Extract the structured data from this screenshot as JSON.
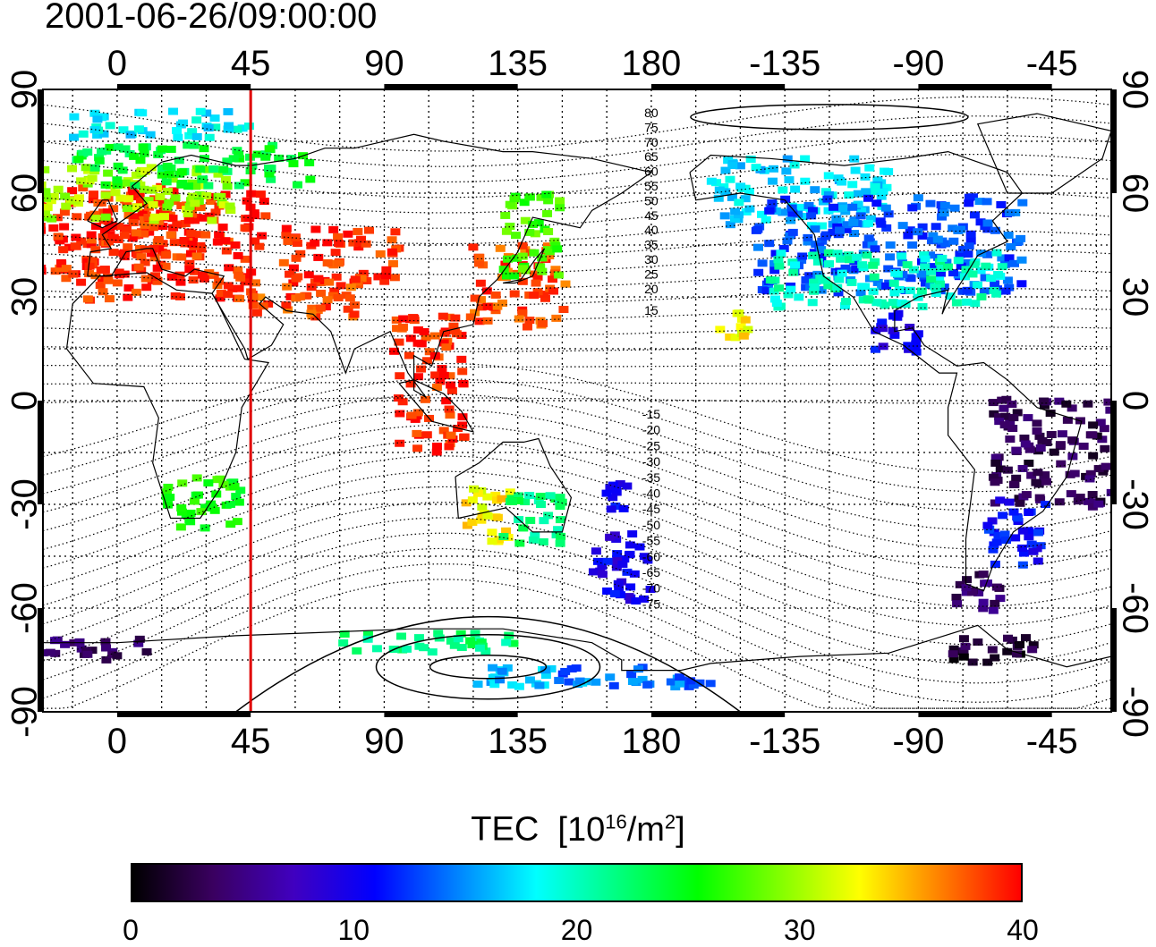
{
  "timestamp": "2001-06-26/09:00:00",
  "colorbar": {
    "title": "TEC",
    "unit_base": "[10",
    "unit_exp": "16",
    "unit_mid": "/m",
    "unit_exp2": "2",
    "unit_end": "]",
    "ticks": [
      "0",
      "10",
      "20",
      "30",
      "40"
    ],
    "min": 0,
    "max": 40,
    "colors": [
      "#000000",
      "#3a0060",
      "#4000c0",
      "#0000ff",
      "#0080ff",
      "#00ffff",
      "#00ff80",
      "#00ff00",
      "#80ff00",
      "#ffff00",
      "#ff8000",
      "#ff0000"
    ]
  },
  "axes": {
    "lon_ticks": [
      "0",
      "45",
      "90",
      "135",
      "180",
      "-135",
      "-90",
      "-45"
    ],
    "lon_values": [
      0,
      45,
      90,
      135,
      180,
      225,
      270,
      315
    ],
    "lon_range": [
      -25,
      335
    ],
    "lat_ticks": [
      "90",
      "60",
      "30",
      "0",
      "-30",
      "-60",
      "-90"
    ],
    "lat_values": [
      90,
      60,
      30,
      0,
      -30,
      -60,
      -90
    ]
  },
  "meridian_line": {
    "lon": 45,
    "color": "#e00000"
  },
  "magnetic_contour_labels": {
    "north": [
      "80",
      "75",
      "70",
      "65",
      "60",
      "55",
      "50",
      "45",
      "40",
      "35",
      "30",
      "25",
      "20",
      "15"
    ],
    "south": [
      "-15",
      "-20",
      "-25",
      "-30",
      "-35",
      "-40",
      "-45",
      "-50",
      "-55",
      "-60",
      "-65",
      "-70",
      "-75"
    ]
  },
  "tec_regions": [
    {
      "lon": -3,
      "lat": 48,
      "w": 30,
      "h": 14,
      "tec": 39
    },
    {
      "lon": 20,
      "lat": 45,
      "w": 30,
      "h": 16,
      "tec": 39
    },
    {
      "lon": 5,
      "lat": 60,
      "w": 35,
      "h": 8,
      "tec": 30
    },
    {
      "lon": 25,
      "lat": 68,
      "w": 40,
      "h": 6,
      "tec": 24
    },
    {
      "lon": 15,
      "lat": 80,
      "w": 30,
      "h": 4,
      "tec": 18
    },
    {
      "lon": 75,
      "lat": 42,
      "w": 20,
      "h": 8,
      "tec": 39
    },
    {
      "lon": 65,
      "lat": 30,
      "w": 20,
      "h": 6,
      "tec": 38
    },
    {
      "lon": 135,
      "lat": 33,
      "w": 16,
      "h": 12,
      "tec": 38
    },
    {
      "lon": 140,
      "lat": 48,
      "w": 10,
      "h": 12,
      "tec": 27
    },
    {
      "lon": 105,
      "lat": 5,
      "w": 12,
      "h": 20,
      "tec": 39
    },
    {
      "lon": 28,
      "lat": -30,
      "w": 14,
      "h": 8,
      "tec": 26
    },
    {
      "lon": 125,
      "lat": -33,
      "w": 8,
      "h": 8,
      "tec": 33
    },
    {
      "lon": 140,
      "lat": -35,
      "w": 10,
      "h": 8,
      "tec": 22
    },
    {
      "lon": 170,
      "lat": -48,
      "w": 10,
      "h": 10,
      "tec": 10
    },
    {
      "lon": 168,
      "lat": -28,
      "w": 5,
      "h": 4,
      "tec": 10
    },
    {
      "lon": 105,
      "lat": -70,
      "w": 30,
      "h": 3,
      "tec": 22
    },
    {
      "lon": 175,
      "lat": -80,
      "w": 25,
      "h": 3,
      "tec": 14
    },
    {
      "lon": 140,
      "lat": -80,
      "w": 20,
      "h": 3,
      "tec": 16
    },
    {
      "lon": -8,
      "lat": -72,
      "w": 20,
      "h": 3,
      "tec": 4
    },
    {
      "lon": 230,
      "lat": 60,
      "w": 30,
      "h": 10,
      "tec": 17
    },
    {
      "lon": 260,
      "lat": 45,
      "w": 45,
      "h": 14,
      "tec": 13
    },
    {
      "lon": 260,
      "lat": 35,
      "w": 40,
      "h": 8,
      "tec": 20
    },
    {
      "lon": 262,
      "lat": 20,
      "w": 8,
      "h": 6,
      "tec": 10
    },
    {
      "lon": 208,
      "lat": 22,
      "w": 6,
      "h": 4,
      "tec": 33
    },
    {
      "lon": 315,
      "lat": -15,
      "w": 20,
      "h": 16,
      "tec": 3
    },
    {
      "lon": 303,
      "lat": -38,
      "w": 10,
      "h": 10,
      "tec": 11
    },
    {
      "lon": 295,
      "lat": -72,
      "w": 14,
      "h": 4,
      "tec": 2
    },
    {
      "lon": 290,
      "lat": -55,
      "w": 8,
      "h": 6,
      "tec": 4
    }
  ]
}
